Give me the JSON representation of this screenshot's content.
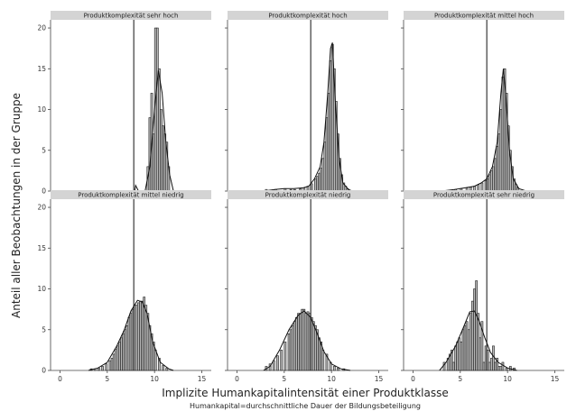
{
  "chart_data": {
    "type": "bar",
    "layout": "facet-grid",
    "xlabel": "Implizite Humankapitalintensität einer Produktklasse",
    "ylabel": "Anteil aller Beobachtungen in der Gruppe",
    "caption": "Humankapital=durchschnittliche Dauer der Bildungsbeteiligung",
    "xlim": [
      -1,
      16
    ],
    "ylim": [
      0,
      21
    ],
    "x_ticks": [
      0,
      5,
      10,
      15
    ],
    "y_ticks": [
      0,
      5,
      10,
      15,
      20
    ],
    "reference_line_x": 7.8,
    "grid": false,
    "panels": [
      {
        "title": "Produktkomplexität sehr hoch",
        "bins": [
          [
            9.2,
            3
          ],
          [
            9.4,
            9
          ],
          [
            9.6,
            12
          ],
          [
            9.8,
            7
          ],
          [
            10.0,
            20
          ],
          [
            10.2,
            20
          ],
          [
            10.4,
            15
          ],
          [
            10.6,
            10
          ],
          [
            10.8,
            8
          ],
          [
            11.0,
            7
          ],
          [
            11.2,
            6
          ],
          [
            11.4,
            3
          ]
        ],
        "density": [
          [
            3,
            0
          ],
          [
            7.9,
            0
          ],
          [
            8.0,
            0.7
          ],
          [
            8.3,
            0
          ],
          [
            9.0,
            0
          ],
          [
            9.5,
            3
          ],
          [
            10.0,
            10
          ],
          [
            10.4,
            14.8
          ],
          [
            10.8,
            12
          ],
          [
            11.2,
            6
          ],
          [
            11.6,
            2
          ],
          [
            12.0,
            0
          ]
        ]
      },
      {
        "title": "Produktkomplexität hoch",
        "bins": [
          [
            3,
            0.2
          ],
          [
            4,
            0.2
          ],
          [
            5,
            0.3
          ],
          [
            5.6,
            0.2
          ],
          [
            6,
            0.2
          ],
          [
            6.6,
            0.3
          ],
          [
            7,
            0.4
          ],
          [
            7.4,
            0.6
          ],
          [
            7.8,
            0.9
          ],
          [
            8.2,
            1.5
          ],
          [
            8.4,
            1.8
          ],
          [
            8.6,
            2.2
          ],
          [
            8.8,
            2.8
          ],
          [
            9.0,
            4
          ],
          [
            9.2,
            6
          ],
          [
            9.4,
            9
          ],
          [
            9.6,
            12
          ],
          [
            9.8,
            16
          ],
          [
            10.0,
            18
          ],
          [
            10.2,
            15
          ],
          [
            10.4,
            11
          ],
          [
            10.6,
            7
          ],
          [
            10.8,
            4
          ],
          [
            11.0,
            2
          ],
          [
            11.2,
            1
          ],
          [
            11.4,
            0.6
          ],
          [
            11.6,
            0.3
          ]
        ],
        "density": [
          [
            2.8,
            0
          ],
          [
            4,
            0.2
          ],
          [
            5,
            0.3
          ],
          [
            6,
            0.3
          ],
          [
            7,
            0.4
          ],
          [
            7.6,
            0.6
          ],
          [
            8.2,
            1.5
          ],
          [
            8.8,
            3
          ],
          [
            9.2,
            6
          ],
          [
            9.6,
            12
          ],
          [
            9.9,
            17.5
          ],
          [
            10.1,
            18.2
          ],
          [
            10.4,
            11
          ],
          [
            10.8,
            4
          ],
          [
            11.2,
            1
          ],
          [
            11.8,
            0.2
          ],
          [
            12.2,
            0
          ]
        ]
      },
      {
        "title": "Produktkomplexität mittel hoch",
        "bins": [
          [
            4.4,
            0.2
          ],
          [
            5,
            0.3
          ],
          [
            5.6,
            0.4
          ],
          [
            6,
            0.5
          ],
          [
            6.4,
            0.6
          ],
          [
            6.8,
            0.8
          ],
          [
            7.2,
            1
          ],
          [
            7.6,
            1.3
          ],
          [
            7.8,
            1.5
          ],
          [
            8.0,
            2
          ],
          [
            8.2,
            2.5
          ],
          [
            8.4,
            3
          ],
          [
            8.6,
            4
          ],
          [
            8.8,
            5.5
          ],
          [
            9.0,
            7
          ],
          [
            9.2,
            10
          ],
          [
            9.4,
            14
          ],
          [
            9.6,
            15
          ],
          [
            9.8,
            12
          ],
          [
            10.0,
            8
          ],
          [
            10.2,
            5
          ],
          [
            10.4,
            3
          ],
          [
            10.6,
            1.5
          ],
          [
            10.8,
            0.8
          ],
          [
            11.0,
            0.4
          ]
        ],
        "density": [
          [
            3,
            0
          ],
          [
            4.4,
            0.2
          ],
          [
            5.5,
            0.4
          ],
          [
            6.5,
            0.6
          ],
          [
            7.2,
            1
          ],
          [
            7.8,
            1.5
          ],
          [
            8.4,
            3
          ],
          [
            8.9,
            6
          ],
          [
            9.3,
            12
          ],
          [
            9.55,
            15
          ],
          [
            9.8,
            12
          ],
          [
            10.2,
            5
          ],
          [
            10.6,
            1.5
          ],
          [
            11.2,
            0.3
          ],
          [
            12,
            0
          ]
        ]
      },
      {
        "title": "Produktkomplexität mittel niedrig",
        "bins": [
          [
            3.2,
            0.2
          ],
          [
            3.6,
            0.2
          ],
          [
            4,
            0.3
          ],
          [
            4.4,
            0.5
          ],
          [
            4.8,
            0.8
          ],
          [
            5.2,
            1.2
          ],
          [
            5.4,
            1.5
          ],
          [
            5.6,
            2
          ],
          [
            5.8,
            2.6
          ],
          [
            6.0,
            3
          ],
          [
            6.2,
            3.5
          ],
          [
            6.4,
            4
          ],
          [
            6.6,
            4.5
          ],
          [
            6.8,
            5
          ],
          [
            7.0,
            5.5
          ],
          [
            7.2,
            6.5
          ],
          [
            7.4,
            7
          ],
          [
            7.6,
            7.5
          ],
          [
            7.8,
            8
          ],
          [
            8.0,
            8
          ],
          [
            8.2,
            8.3
          ],
          [
            8.4,
            8.5
          ],
          [
            8.6,
            8.5
          ],
          [
            8.8,
            9
          ],
          [
            9.0,
            8
          ],
          [
            9.2,
            7
          ],
          [
            9.4,
            5.5
          ],
          [
            9.6,
            4.5
          ],
          [
            9.8,
            3.5
          ],
          [
            10.0,
            2.5
          ],
          [
            10.4,
            1.5
          ],
          [
            10.8,
            0.6
          ],
          [
            11.2,
            0.3
          ]
        ],
        "density": [
          [
            3,
            0
          ],
          [
            4,
            0.3
          ],
          [
            5,
            1
          ],
          [
            6,
            3
          ],
          [
            6.8,
            5
          ],
          [
            7.5,
            7.3
          ],
          [
            8.2,
            8.6
          ],
          [
            8.7,
            8.4
          ],
          [
            9.2,
            7
          ],
          [
            9.8,
            3.5
          ],
          [
            10.6,
            1
          ],
          [
            11.5,
            0.2
          ],
          [
            12,
            0
          ]
        ]
      },
      {
        "title": "Produktkomplexität niedrig",
        "bins": [
          [
            3.0,
            0.5
          ],
          [
            3.4,
            0.8
          ],
          [
            3.8,
            1.2
          ],
          [
            4.2,
            1.8
          ],
          [
            4.6,
            2.5
          ],
          [
            5.0,
            3.5
          ],
          [
            5.4,
            4.5
          ],
          [
            5.6,
            5
          ],
          [
            5.8,
            5.5
          ],
          [
            6.0,
            6
          ],
          [
            6.2,
            6.5
          ],
          [
            6.4,
            7
          ],
          [
            6.6,
            7
          ],
          [
            6.8,
            7.5
          ],
          [
            7.0,
            7.5
          ],
          [
            7.2,
            7
          ],
          [
            7.4,
            7.2
          ],
          [
            7.6,
            7
          ],
          [
            7.8,
            6.5
          ],
          [
            8.0,
            6
          ],
          [
            8.2,
            5.5
          ],
          [
            8.4,
            5
          ],
          [
            8.6,
            4
          ],
          [
            8.8,
            3.5
          ],
          [
            9.0,
            2.5
          ],
          [
            9.4,
            2
          ],
          [
            9.8,
            1
          ],
          [
            10.2,
            0.5
          ],
          [
            10.6,
            0.3
          ],
          [
            11.2,
            0.2
          ]
        ],
        "density": [
          [
            2.8,
            0
          ],
          [
            3.5,
            0.5
          ],
          [
            4.5,
            2.5
          ],
          [
            5.5,
            5
          ],
          [
            6.5,
            6.8
          ],
          [
            7.1,
            7.3
          ],
          [
            7.8,
            6.5
          ],
          [
            8.5,
            4.5
          ],
          [
            9.2,
            2.3
          ],
          [
            10,
            0.8
          ],
          [
            11,
            0.2
          ],
          [
            12,
            0
          ]
        ]
      },
      {
        "title": "Produktkomplexität sehr niedrig",
        "bins": [
          [
            3.2,
            1
          ],
          [
            3.6,
            1.5
          ],
          [
            3.8,
            2
          ],
          [
            4.0,
            2.5
          ],
          [
            4.2,
            1
          ],
          [
            4.4,
            3
          ],
          [
            4.6,
            3.5
          ],
          [
            4.8,
            4
          ],
          [
            5.0,
            3.5
          ],
          [
            5.2,
            5
          ],
          [
            5.4,
            5.5
          ],
          [
            5.6,
            6
          ],
          [
            5.8,
            5
          ],
          [
            6.0,
            7
          ],
          [
            6.2,
            8.5
          ],
          [
            6.4,
            10
          ],
          [
            6.6,
            11
          ],
          [
            6.8,
            7
          ],
          [
            7.0,
            4
          ],
          [
            7.2,
            6
          ],
          [
            7.4,
            1
          ],
          [
            7.6,
            3
          ],
          [
            7.8,
            2.5
          ],
          [
            8.0,
            1
          ],
          [
            8.2,
            1.5
          ],
          [
            8.4,
            3
          ],
          [
            8.6,
            1
          ],
          [
            8.8,
            1.5
          ],
          [
            9.0,
            0.5
          ],
          [
            9.2,
            0.5
          ],
          [
            9.4,
            1
          ],
          [
            9.8,
            0.3
          ],
          [
            10.2,
            0.5
          ],
          [
            10.6,
            0.3
          ]
        ],
        "density": [
          [
            2.8,
            0
          ],
          [
            3.5,
            1
          ],
          [
            4.5,
            3
          ],
          [
            5.3,
            5.2
          ],
          [
            6.0,
            7.2
          ],
          [
            6.5,
            7.3
          ],
          [
            7.0,
            6
          ],
          [
            7.6,
            4
          ],
          [
            8.2,
            2.2
          ],
          [
            9.0,
            1
          ],
          [
            10,
            0.3
          ],
          [
            11,
            0
          ]
        ]
      }
    ]
  }
}
